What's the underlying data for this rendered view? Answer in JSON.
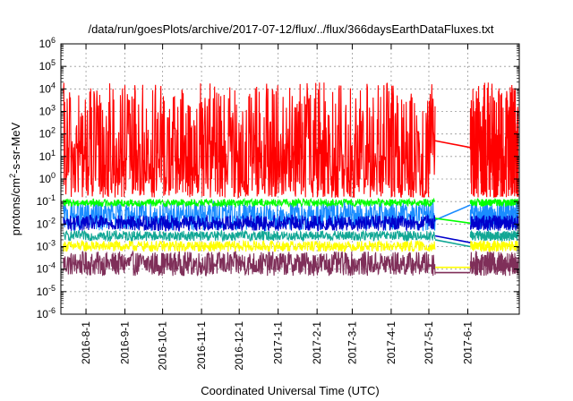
{
  "chart_data": {
    "type": "line",
    "title": "/data/run/goesPlots/archive/2017-07-12/flux/../flux/366daysEarthDataFluxes.txt",
    "xlabel": "Coordinated Universal Time (UTC)",
    "ylabel": {
      "prefix": "protons/cm",
      "sup": "2",
      "suffix": "-s-sr-MeV"
    },
    "yscale": "log",
    "ylim": [
      1e-06,
      1000000.0
    ],
    "y_ticks": [
      {
        "value": 1e-06,
        "base": "10",
        "exp": "-6"
      },
      {
        "value": 1e-05,
        "base": "10",
        "exp": "-5"
      },
      {
        "value": 0.0001,
        "base": "10",
        "exp": "-4"
      },
      {
        "value": 0.001,
        "base": "10",
        "exp": "-3"
      },
      {
        "value": 0.01,
        "base": "10",
        "exp": "-2"
      },
      {
        "value": 0.1,
        "base": "10",
        "exp": "-1"
      },
      {
        "value": 1,
        "base": "10",
        "exp": "0"
      },
      {
        "value": 10,
        "base": "10",
        "exp": "1"
      },
      {
        "value": 100,
        "base": "10",
        "exp": "2"
      },
      {
        "value": 1000,
        "base": "10",
        "exp": "3"
      },
      {
        "value": 10000,
        "base": "10",
        "exp": "4"
      },
      {
        "value": 100000,
        "base": "10",
        "exp": "5"
      },
      {
        "value": 1000000,
        "base": "10",
        "exp": "6"
      }
    ],
    "xlim": [
      "2016-07-12",
      "2017-07-12"
    ],
    "x_ticks": [
      {
        "date": "2016-08-01",
        "label": "2016-8-1"
      },
      {
        "date": "2016-09-01",
        "label": "2016-9-1"
      },
      {
        "date": "2016-10-01",
        "label": "2016-10-1"
      },
      {
        "date": "2016-11-01",
        "label": "2016-11-1"
      },
      {
        "date": "2016-12-01",
        "label": "2016-12-1"
      },
      {
        "date": "2017-01-01",
        "label": "2017-1-1"
      },
      {
        "date": "2017-02-01",
        "label": "2017-2-1"
      },
      {
        "date": "2017-03-01",
        "label": "2017-3-1"
      },
      {
        "date": "2017-04-01",
        "label": "2017-4-1"
      },
      {
        "date": "2017-05-01",
        "label": "2017-5-1"
      },
      {
        "date": "2017-06-01",
        "label": "2017-6-1"
      }
    ],
    "grid": true,
    "data_gap": [
      "2017-05-06",
      "2017-06-03"
    ],
    "series": [
      {
        "color": "#7f2f59",
        "low": 5e-05,
        "high": 0.0006,
        "bridge": [
          7e-05,
          7e-05
        ]
      },
      {
        "color": "#ffff00",
        "low": 0.0006,
        "high": 0.0018,
        "bridge": [
          0.00012,
          0.00012
        ]
      },
      {
        "color": "#11a795",
        "low": 0.0018,
        "high": 0.005,
        "bridge": [
          0.002,
          0.001
        ]
      },
      {
        "color": "#1a8cff",
        "low": 0.005,
        "high": 0.1,
        "bridge": [
          0.015,
          0.07
        ]
      },
      {
        "color": "#0000cc",
        "low": 0.005,
        "high": 0.025,
        "bridge": [
          0.003,
          0.0015
        ]
      },
      {
        "color": "#00ff00",
        "low": 0.06,
        "high": 0.13,
        "bridge": [
          0.018,
          0.011
        ]
      },
      {
        "color": "#ff0000",
        "low": 0.15,
        "high": 20000.0,
        "bridge": [
          50,
          25
        ]
      }
    ]
  }
}
